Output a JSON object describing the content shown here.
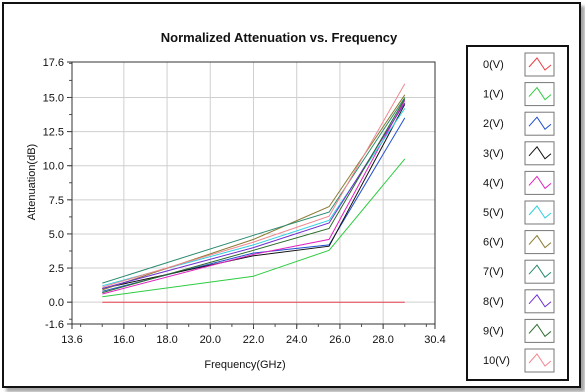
{
  "chart_data": {
    "type": "line",
    "title": "Normalized Attenuation vs. Frequency",
    "xlabel": "Frequency(GHz)",
    "ylabel": "Attenuation(dB)",
    "xlim": [
      13.6,
      30.4
    ],
    "ylim": [
      -1.6,
      17.6
    ],
    "x_ticks": [
      13.6,
      16.0,
      18.0,
      20.0,
      22.0,
      24.0,
      26.0,
      28.0,
      30.4
    ],
    "x_tick_labels": [
      "13.6",
      "16.0",
      "18.0",
      "20.0",
      "22.0",
      "24.0",
      "26.0",
      "28.0",
      "30.4"
    ],
    "y_ticks": [
      17.6,
      15.0,
      12.5,
      10.0,
      7.5,
      5.0,
      2.5,
      0.0,
      -1.6
    ],
    "y_tick_labels": [
      "17.6",
      "15.0",
      "12.5",
      "10.0",
      "7.5",
      "5.0",
      "2.5",
      "0.0",
      "-1.6"
    ],
    "grid": true,
    "legend_position": "right",
    "x": [
      15.0,
      22.0,
      25.5,
      29.0
    ],
    "series": [
      {
        "name": "0(V)",
        "color": "#e8404a",
        "values": [
          0.0,
          0.0,
          0.0,
          0.0
        ]
      },
      {
        "name": "1(V)",
        "color": "#2ecc40",
        "values": [
          0.4,
          1.9,
          3.8,
          10.5
        ]
      },
      {
        "name": "2(V)",
        "color": "#2050d0",
        "values": [
          0.8,
          3.6,
          4.2,
          13.5
        ]
      },
      {
        "name": "3(V)",
        "color": "#111111",
        "values": [
          1.0,
          3.4,
          4.1,
          14.5
        ]
      },
      {
        "name": "4(V)",
        "color": "#e020c0",
        "values": [
          0.6,
          3.5,
          4.6,
          14.8
        ]
      },
      {
        "name": "5(V)",
        "color": "#30d0e0",
        "values": [
          1.2,
          4.2,
          6.0,
          14.2
        ]
      },
      {
        "name": "6(V)",
        "color": "#8a7a30",
        "values": [
          0.9,
          4.6,
          7.0,
          15.2
        ]
      },
      {
        "name": "7(V)",
        "color": "#2a8a70",
        "values": [
          1.4,
          4.9,
          6.6,
          15.0
        ]
      },
      {
        "name": "8(V)",
        "color": "#7030d0",
        "values": [
          1.0,
          4.0,
          5.8,
          14.6
        ]
      },
      {
        "name": "9(V)",
        "color": "#2a6a2a",
        "values": [
          0.7,
          3.8,
          5.4,
          14.9
        ]
      },
      {
        "name": "10(V)",
        "color": "#f08890",
        "values": [
          1.1,
          4.4,
          6.3,
          16.0
        ]
      }
    ]
  }
}
